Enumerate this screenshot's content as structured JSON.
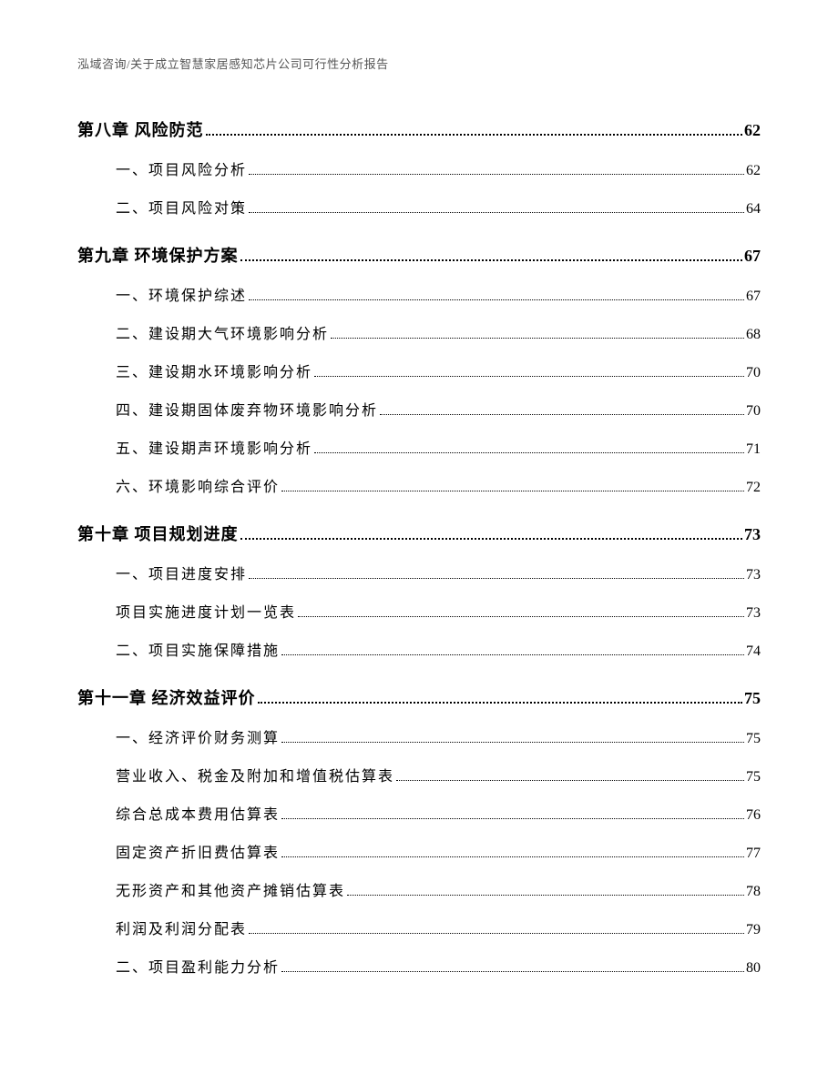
{
  "header": "泓域咨询/关于成立智慧家居感知芯片公司可行性分析报告",
  "toc": [
    {
      "type": "chapter",
      "label": "第八章 风险防范",
      "page": "62"
    },
    {
      "type": "item",
      "label": "一、项目风险分析",
      "page": "62"
    },
    {
      "type": "item",
      "label": "二、项目风险对策",
      "page": "64"
    },
    {
      "type": "chapter",
      "label": "第九章 环境保护方案",
      "page": "67"
    },
    {
      "type": "item",
      "label": "一、环境保护综述",
      "page": "67"
    },
    {
      "type": "item",
      "label": "二、建设期大气环境影响分析",
      "page": "68"
    },
    {
      "type": "item",
      "label": "三、建设期水环境影响分析",
      "page": "70"
    },
    {
      "type": "item",
      "label": "四、建设期固体废弃物环境影响分析",
      "page": "70"
    },
    {
      "type": "item",
      "label": "五、建设期声环境影响分析",
      "page": "71"
    },
    {
      "type": "item",
      "label": "六、环境影响综合评价",
      "page": "72"
    },
    {
      "type": "chapter",
      "label": "第十章 项目规划进度",
      "page": "73"
    },
    {
      "type": "item",
      "label": "一、项目进度安排",
      "page": "73"
    },
    {
      "type": "item",
      "label": "项目实施进度计划一览表",
      "page": "73"
    },
    {
      "type": "item",
      "label": "二、项目实施保障措施",
      "page": "74"
    },
    {
      "type": "chapter",
      "label": "第十一章 经济效益评价",
      "page": "75"
    },
    {
      "type": "item",
      "label": "一、经济评价财务测算",
      "page": "75"
    },
    {
      "type": "item",
      "label": "营业收入、税金及附加和增值税估算表",
      "page": "75"
    },
    {
      "type": "item",
      "label": "综合总成本费用估算表",
      "page": "76"
    },
    {
      "type": "item",
      "label": "固定资产折旧费估算表",
      "page": "77"
    },
    {
      "type": "item",
      "label": "无形资产和其他资产摊销估算表",
      "page": "78"
    },
    {
      "type": "item",
      "label": "利润及利润分配表",
      "page": "79"
    },
    {
      "type": "item",
      "label": "二、项目盈利能力分析",
      "page": "80"
    }
  ]
}
